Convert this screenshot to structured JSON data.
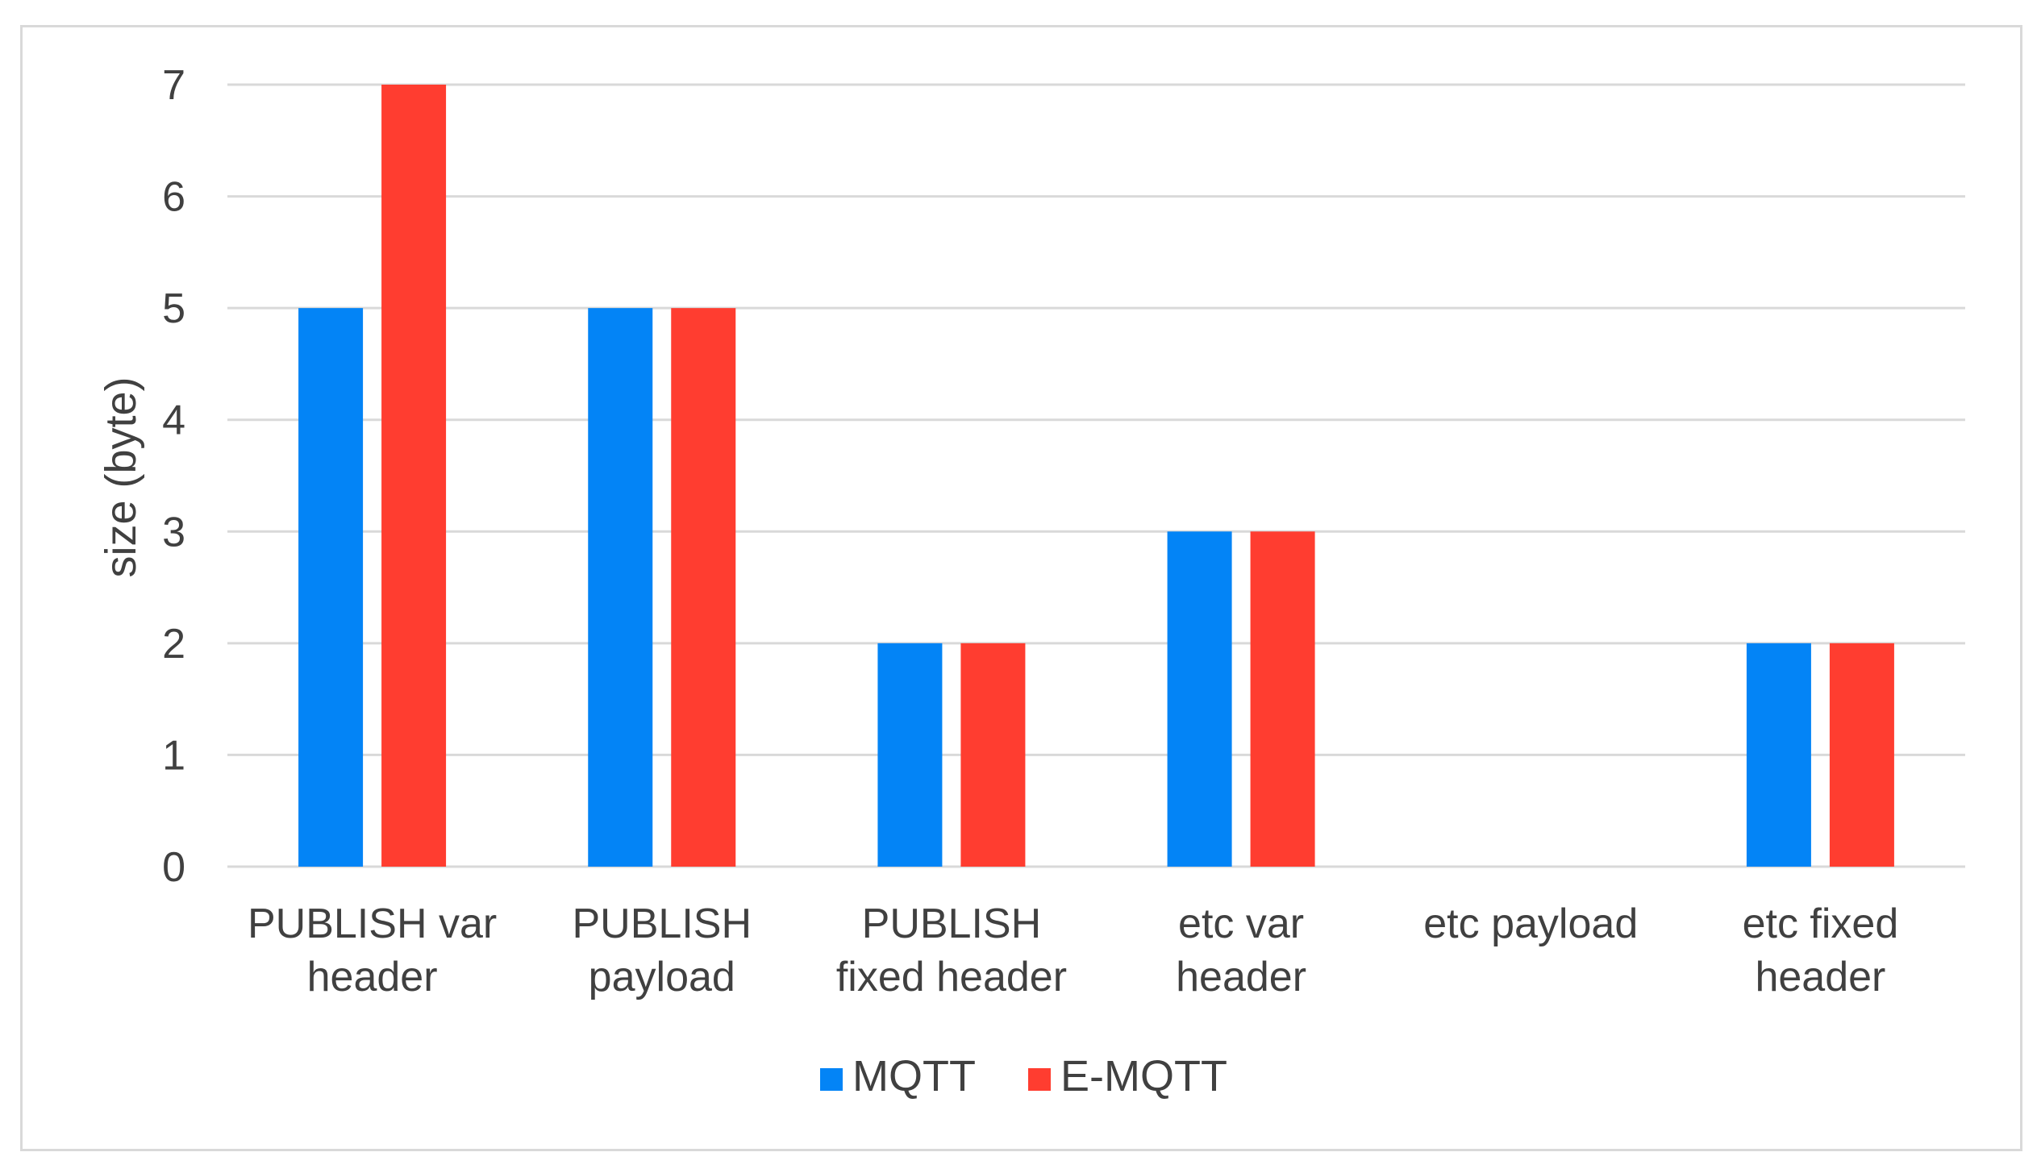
{
  "chart_data": {
    "type": "bar",
    "categories": [
      [
        "PUBLISH var",
        "header"
      ],
      [
        "PUBLISH",
        "payload"
      ],
      [
        "PUBLISH",
        "fixed header"
      ],
      [
        "etc var",
        "header"
      ],
      [
        "etc payload"
      ],
      [
        "etc fixed",
        "header"
      ]
    ],
    "series": [
      {
        "name": "MQTT",
        "color": "#0384f6",
        "values": [
          5,
          5,
          2,
          3,
          0,
          2
        ]
      },
      {
        "name": "E-MQTT",
        "color": "#ff3d30",
        "values": [
          7,
          5,
          2,
          3,
          0,
          2
        ]
      }
    ],
    "title": "",
    "xlabel": "",
    "ylabel": "size (byte)",
    "ylim": [
      0,
      7
    ],
    "yticks": [
      0,
      1,
      2,
      3,
      4,
      5,
      6,
      7
    ],
    "grid": true,
    "legend": "bottom-center"
  }
}
